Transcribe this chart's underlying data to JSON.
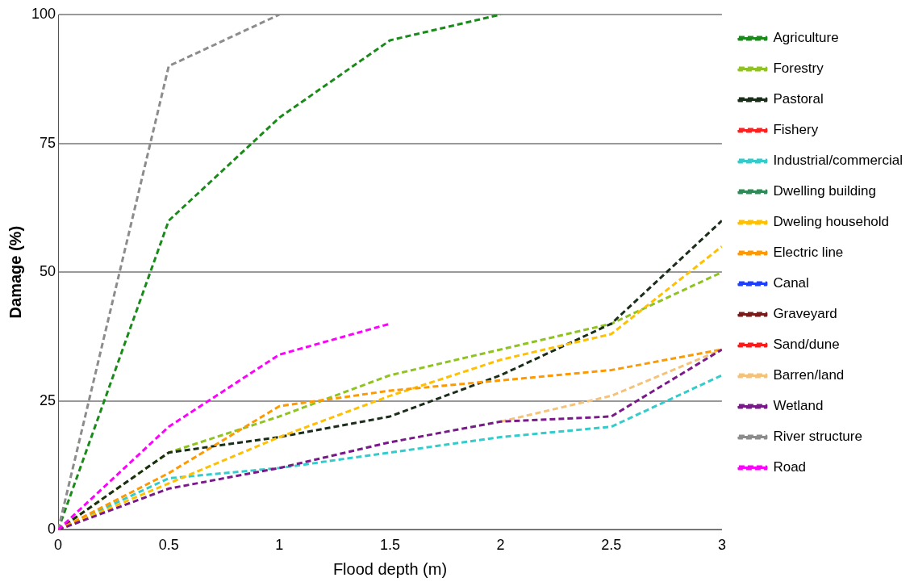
{
  "chart_data": {
    "type": "line",
    "xlabel": "Flood depth (m)",
    "ylabel": "Damage (%)",
    "x": [
      0,
      0.5,
      1,
      1.5,
      2,
      2.5,
      3
    ],
    "xlim": [
      0,
      3
    ],
    "xticks": [
      0,
      0.5,
      1,
      1.5,
      2,
      2.5,
      3
    ],
    "ylim": [
      0,
      100
    ],
    "yticks": [
      0,
      25,
      50,
      75,
      100
    ],
    "grid": "y",
    "legend": "right",
    "line_style": "dashed",
    "marker": "none",
    "series": [
      {
        "name": "Agriculture",
        "color": "#1a8a1a",
        "values": [
          0,
          60,
          80,
          95,
          100,
          null,
          null
        ]
      },
      {
        "name": "Forestry",
        "color": "#8fc31f",
        "values": [
          0,
          15,
          22,
          30,
          35,
          40,
          50
        ]
      },
      {
        "name": "Pastoral",
        "color": "#1a2e1a",
        "values": [
          0,
          15,
          18,
          22,
          30,
          40,
          60
        ]
      },
      {
        "name": "Fishery",
        "color": "#ff2020",
        "values": [
          null,
          null,
          null,
          null,
          null,
          null,
          null
        ]
      },
      {
        "name": "Industrial/commercial",
        "color": "#33cccc",
        "values": [
          0,
          10,
          12,
          15,
          18,
          20,
          30
        ]
      },
      {
        "name": "Dwelling building",
        "color": "#2e8b57",
        "values": [
          null,
          null,
          null,
          null,
          null,
          null,
          null
        ]
      },
      {
        "name": "Dweling household",
        "color": "#ffc000",
        "values": [
          0,
          9,
          18,
          26,
          33,
          38,
          55
        ]
      },
      {
        "name": "Electric line",
        "color": "#ff9900",
        "values": [
          0,
          11,
          24,
          27,
          29,
          31,
          35
        ]
      },
      {
        "name": "Canal",
        "color": "#1f3fff",
        "values": [
          null,
          null,
          null,
          null,
          null,
          null,
          null
        ]
      },
      {
        "name": "Graveyard",
        "color": "#7a1a1a",
        "values": [
          null,
          null,
          null,
          null,
          null,
          null,
          null
        ]
      },
      {
        "name": "Sand/dune",
        "color": "#ff1a1a",
        "values": [
          null,
          null,
          null,
          null,
          null,
          null,
          null
        ]
      },
      {
        "name": "Barren/land",
        "color": "#f5c27a",
        "values": [
          null,
          null,
          null,
          null,
          21,
          26,
          35
        ]
      },
      {
        "name": "Wetland",
        "color": "#7a1a8a",
        "values": [
          0,
          8,
          12,
          17,
          21,
          22,
          35
        ]
      },
      {
        "name": "River structure",
        "color": "#8c8c8c",
        "values": [
          0,
          90,
          100,
          null,
          null,
          null,
          null
        ]
      },
      {
        "name": "Road",
        "color": "#ff00ff",
        "values": [
          0,
          20,
          34,
          40,
          null,
          null,
          null
        ]
      }
    ]
  }
}
